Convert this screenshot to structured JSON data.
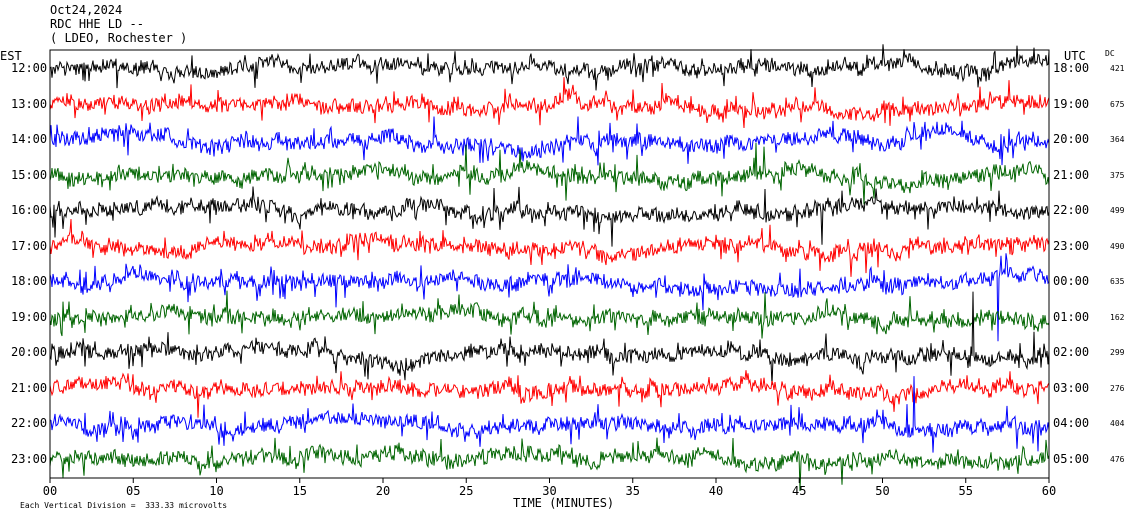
{
  "header": {
    "date": "Oct24,2024",
    "station": "RDC HHE LD --",
    "network": "( LDEO, Rochester )"
  },
  "axes": {
    "left_tz": "EST",
    "right_tz": "UTC",
    "dc_label": "DC",
    "x_label": "TIME (MINUTES)",
    "footnote": "Each Vertical Division =  333.33 microvolts"
  },
  "chart_data": {
    "type": "line",
    "title": "",
    "xlabel": "TIME (MINUTES)",
    "xlim": [
      0,
      60
    ],
    "x_ticks": [
      "00",
      "05",
      "10",
      "15",
      "20",
      "25",
      "30",
      "35",
      "40",
      "45",
      "50",
      "55",
      "60"
    ],
    "colors": [
      "#000000",
      "#ff0000",
      "#0000ff",
      "#006400"
    ],
    "rows": [
      {
        "est": "12:00",
        "utc": "18:00",
        "dc": "421",
        "color": "#000000"
      },
      {
        "est": "13:00",
        "utc": "19:00",
        "dc": "675",
        "color": "#ff0000"
      },
      {
        "est": "14:00",
        "utc": "20:00",
        "dc": "364",
        "color": "#0000ff"
      },
      {
        "est": "15:00",
        "utc": "21:00",
        "dc": "375",
        "color": "#006400"
      },
      {
        "est": "16:00",
        "utc": "22:00",
        "dc": "499",
        "color": "#000000"
      },
      {
        "est": "17:00",
        "utc": "23:00",
        "dc": "490",
        "color": "#ff0000"
      },
      {
        "est": "18:00",
        "utc": "00:00",
        "dc": "635",
        "color": "#0000ff"
      },
      {
        "est": "19:00",
        "utc": "01:00",
        "dc": "162",
        "color": "#006400"
      },
      {
        "est": "20:00",
        "utc": "02:00",
        "dc": "299",
        "color": "#000000"
      },
      {
        "est": "21:00",
        "utc": "03:00",
        "dc": "276",
        "color": "#ff0000"
      },
      {
        "est": "22:00",
        "utc": "04:00",
        "dc": "404",
        "color": "#0000ff"
      },
      {
        "est": "23:00",
        "utc": "05:00",
        "dc": "476",
        "color": "#006400"
      }
    ]
  }
}
